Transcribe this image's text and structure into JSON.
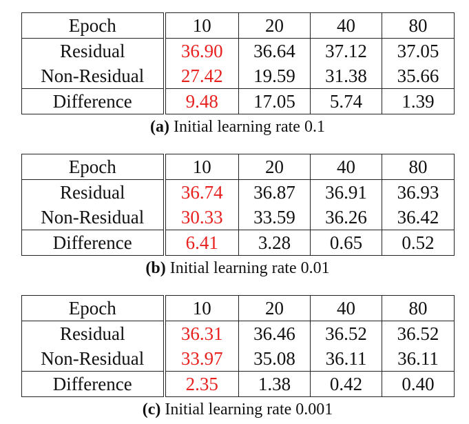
{
  "tables": [
    {
      "caption_tag": "(a)",
      "caption_text": "Initial learning rate 0.1",
      "header": [
        "Epoch",
        "10",
        "20",
        "40",
        "80"
      ],
      "rows": [
        [
          "Residual",
          "36.90",
          "36.64",
          "37.12",
          "37.05"
        ],
        [
          "Non-Residual",
          "27.42",
          "19.59",
          "31.38",
          "35.66"
        ],
        [
          "Difference",
          "9.48",
          "17.05",
          "5.74",
          "1.39"
        ]
      ]
    },
    {
      "caption_tag": "(b)",
      "caption_text": "Initial learning rate 0.01",
      "header": [
        "Epoch",
        "10",
        "20",
        "40",
        "80"
      ],
      "rows": [
        [
          "Residual",
          "36.74",
          "36.87",
          "36.91",
          "36.93"
        ],
        [
          "Non-Residual",
          "30.33",
          "33.59",
          "36.26",
          "36.42"
        ],
        [
          "Difference",
          "6.41",
          "3.28",
          "0.65",
          "0.52"
        ]
      ]
    },
    {
      "caption_tag": "(c)",
      "caption_text": "Initial learning rate 0.001",
      "header": [
        "Epoch",
        "10",
        "20",
        "40",
        "80"
      ],
      "rows": [
        [
          "Residual",
          "36.31",
          "36.46",
          "36.52",
          "36.52"
        ],
        [
          "Non-Residual",
          "33.97",
          "35.08",
          "36.11",
          "36.11"
        ],
        [
          "Difference",
          "2.35",
          "1.38",
          "0.42",
          "0.40"
        ]
      ]
    }
  ],
  "highlight_color": "#e8201e"
}
